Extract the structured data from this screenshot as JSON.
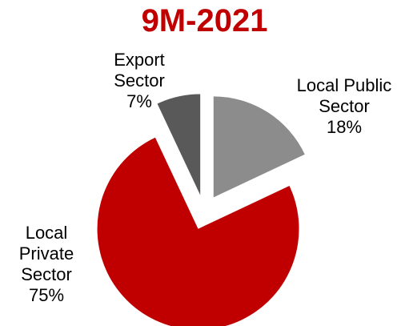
{
  "chart_data": {
    "type": "pie",
    "title": "9M-2021",
    "title_color": "#c00000",
    "slices": [
      {
        "label_lines": [
          "Local Public",
          "Sector"
        ],
        "value": 18,
        "value_label": "18%",
        "color": "#8c8c8c",
        "exploded": true
      },
      {
        "label_lines": [
          "Local",
          "Private",
          "Sector"
        ],
        "value": 75,
        "value_label": "75%",
        "color": "#c00000",
        "exploded": true
      },
      {
        "label_lines": [
          "Export",
          "Sector"
        ],
        "value": 7,
        "value_label": "7%",
        "color": "#595959",
        "exploded": true
      }
    ]
  }
}
